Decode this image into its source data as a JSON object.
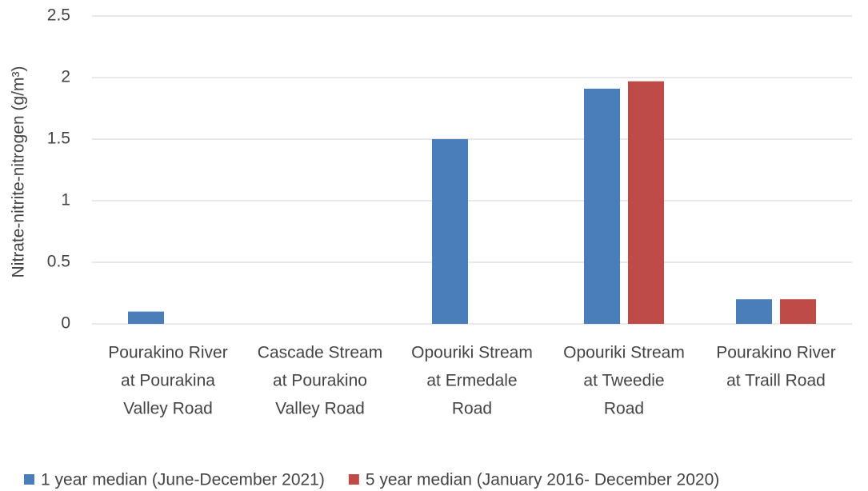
{
  "chart_data": {
    "type": "bar",
    "y_label": "Nitrate-nitrite-nitrogen (g/m³)",
    "categories": [
      [
        "Pourakino River",
        "at Pourakina",
        "Valley Road"
      ],
      [
        "Cascade Stream",
        "at Pourakino",
        "Valley Road"
      ],
      [
        "Opouriki Stream",
        "at Ermedale",
        "Road"
      ],
      [
        "Opouriki Stream",
        "at Tweedie",
        "Road"
      ],
      [
        "Pourakino River",
        "at Traill Road"
      ]
    ],
    "series": [
      {
        "name": "1 year median (June-December 2021)",
        "color": "#4a7ebb",
        "values": [
          0.1,
          null,
          1.5,
          1.91,
          0.2
        ]
      },
      {
        "name": "5 year median (January 2016- December 2020)",
        "color": "#be4b48",
        "values": [
          null,
          null,
          null,
          1.97,
          0.2
        ]
      }
    ],
    "ylim": [
      0,
      2.5
    ],
    "yticks": [
      0,
      0.5,
      1,
      1.5,
      2,
      2.5
    ],
    "grid": true,
    "legend": "bottom"
  }
}
